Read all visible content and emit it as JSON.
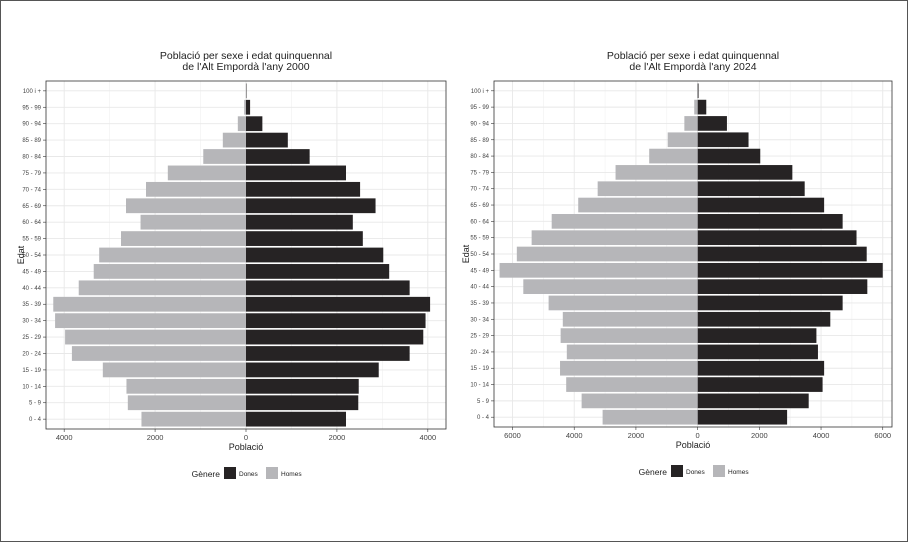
{
  "colors": {
    "Dones": "#262324",
    "Homes": "#b6b6b9",
    "grid": "#e8e8e8",
    "panel_border": "#333333"
  },
  "chart_data": [
    {
      "type": "bar",
      "orientation": "horizontal",
      "title": "Població per sexe i edat quinquennal\nde l'Alt Empordà l'any 2000",
      "xlabel": "Població",
      "ylabel": "Edat",
      "legend_title": "Gènere",
      "legend_position": "bottom",
      "grid": true,
      "categories": [
        "0 - 4",
        "5 - 9",
        "10 - 14",
        "15 - 19",
        "20 - 24",
        "25 - 29",
        "30 - 34",
        "35 - 39",
        "40 - 44",
        "45 - 49",
        "50 - 54",
        "55 - 59",
        "60 - 64",
        "65 - 69",
        "70 - 74",
        "75 - 79",
        "80 - 84",
        "85 - 89",
        "90 - 94",
        "95 - 99",
        "100 i +"
      ],
      "xticks": [
        -4000,
        -2000,
        0,
        2000,
        4000
      ],
      "xtick_labels": [
        "4000",
        "2000",
        "0",
        "2000",
        "4000"
      ],
      "xlim": [
        -4400,
        4400
      ],
      "series": [
        {
          "name": "Dones",
          "side": "right",
          "values": [
            2200,
            2470,
            2480,
            2920,
            3600,
            3900,
            3950,
            4050,
            3600,
            3150,
            3020,
            2570,
            2350,
            2850,
            2510,
            2200,
            1400,
            920,
            360,
            90,
            10
          ]
        },
        {
          "name": "Homes",
          "side": "left",
          "values": [
            2300,
            2600,
            2630,
            3150,
            3830,
            3980,
            4200,
            4240,
            3680,
            3350,
            3230,
            2750,
            2320,
            2640,
            2200,
            1720,
            940,
            510,
            180,
            40,
            5
          ]
        }
      ]
    },
    {
      "type": "bar",
      "orientation": "horizontal",
      "title": "Població per sexe i edat quinquennal\nde l'Alt Empordà l'any 2024",
      "xlabel": "Població",
      "ylabel": "Edat",
      "legend_title": "Gènere",
      "legend_position": "bottom",
      "grid": true,
      "categories": [
        "0 - 4",
        "5 - 9",
        "10 - 14",
        "15 - 19",
        "20 - 24",
        "25 - 29",
        "30 - 34",
        "35 - 39",
        "40 - 44",
        "45 - 49",
        "50 - 54",
        "55 - 59",
        "60 - 64",
        "65 - 69",
        "70 - 74",
        "75 - 79",
        "80 - 84",
        "85 - 89",
        "90 - 94",
        "95 - 99",
        "100 i +"
      ],
      "xticks": [
        -6000,
        -4000,
        -2000,
        0,
        2000,
        4000,
        6000
      ],
      "xtick_labels": [
        "6000",
        "4000",
        "2000",
        "0",
        "2000",
        "4000",
        "6000"
      ],
      "xlim": [
        -6600,
        6300
      ],
      "series": [
        {
          "name": "Dones",
          "side": "right",
          "values": [
            2900,
            3600,
            4050,
            4100,
            3900,
            3850,
            4300,
            4700,
            5500,
            6000,
            5480,
            5150,
            4700,
            4100,
            3470,
            3070,
            2030,
            1650,
            950,
            280,
            30
          ]
        },
        {
          "name": "Homes",
          "side": "left",
          "values": [
            3080,
            3760,
            4260,
            4460,
            4240,
            4440,
            4370,
            4830,
            5650,
            6420,
            5860,
            5380,
            4730,
            3870,
            3240,
            2660,
            1570,
            970,
            430,
            110,
            10
          ]
        }
      ]
    }
  ]
}
